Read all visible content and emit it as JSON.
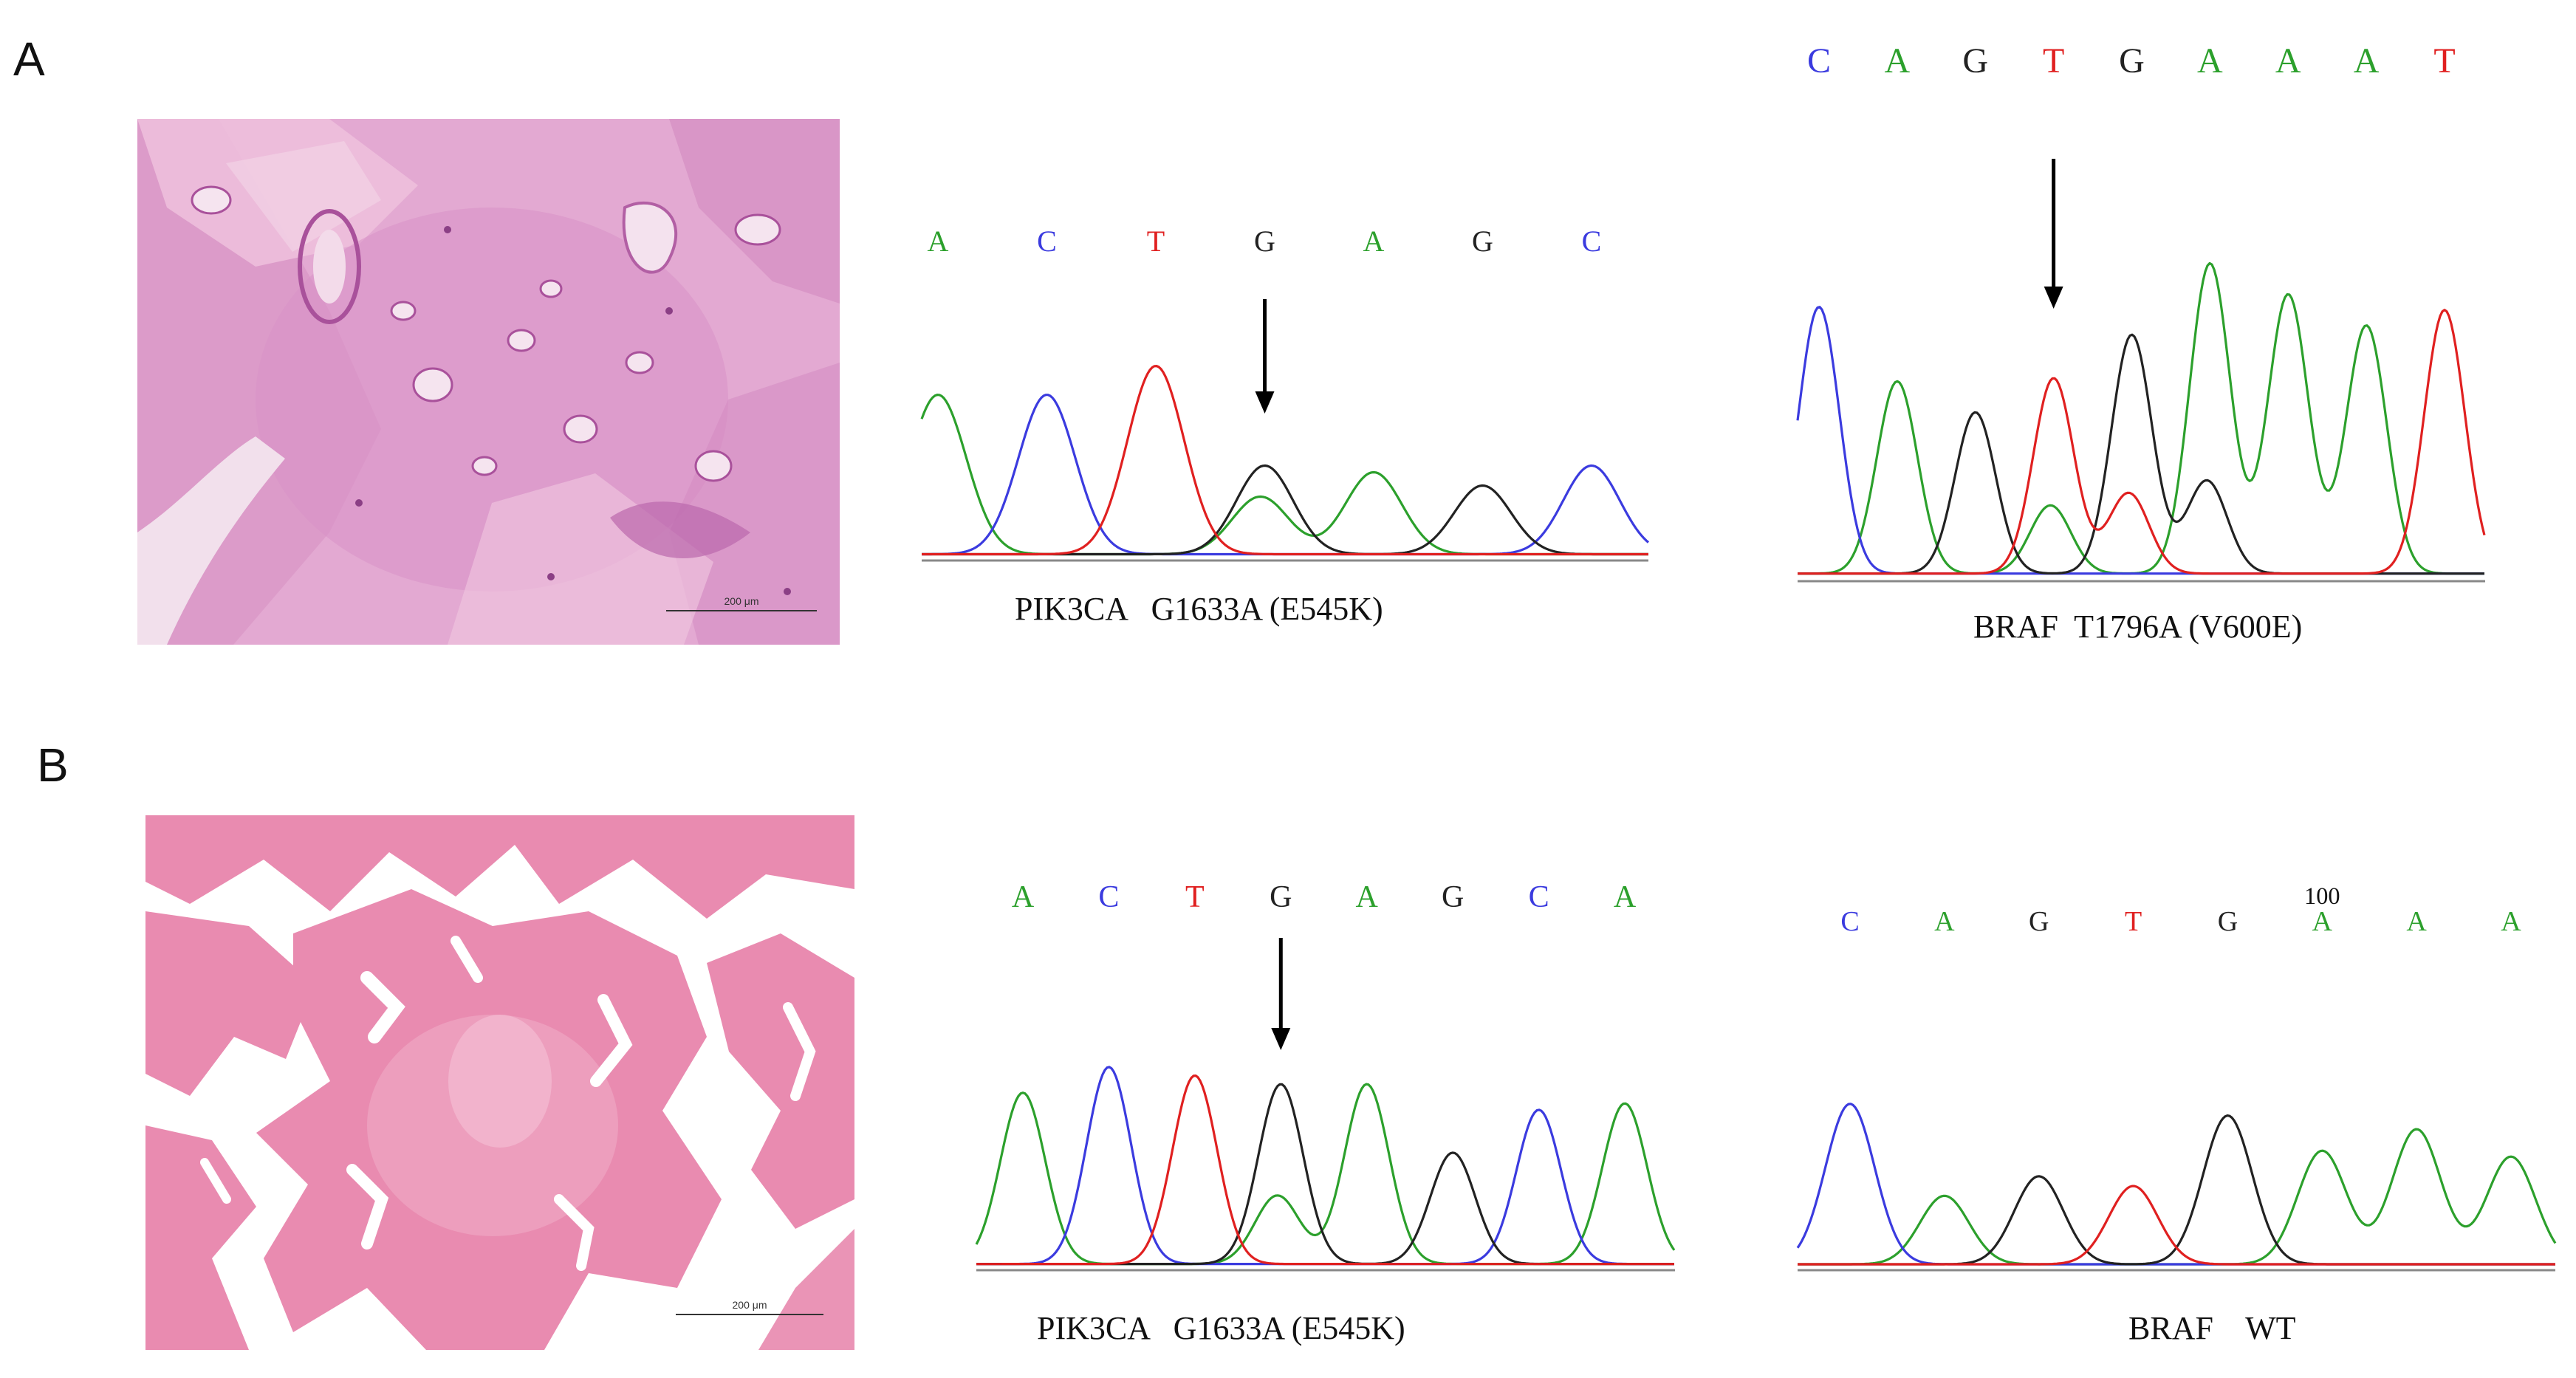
{
  "colors": {
    "A": "#2ca02c",
    "C": "#3b3bdf",
    "G": "#222222",
    "T": "#e02020",
    "tissue_a": "#e3a9d2",
    "tissue_b": "#e98bb0",
    "arrow": "#000000"
  },
  "panels": [
    {
      "letter": "A",
      "histology": {
        "scale_label": "200 μm"
      },
      "traces": [
        {
          "id": "a-pik3ca",
          "bases": [
            "A",
            "C",
            "T",
            "G",
            "A",
            "G",
            "C"
          ],
          "caption": "PIK3CA   G1633A (E545K)",
          "arrow_base_index": 3,
          "peaks": [
            {
              "base": "A",
              "height": 0.72
            },
            {
              "base": "C",
              "height": 0.72
            },
            {
              "base": "T",
              "height": 0.85
            },
            {
              "base": "G",
              "height": 0.4,
              "secondary": {
                "base": "A",
                "height": 0.26
              }
            },
            {
              "base": "A",
              "height": 0.37
            },
            {
              "base": "G",
              "height": 0.31
            },
            {
              "base": "C",
              "height": 0.4
            }
          ]
        },
        {
          "id": "a-braf",
          "bases": [
            "C",
            "A",
            "G",
            "T",
            "G",
            "A",
            "A",
            "A",
            "T"
          ],
          "caption": "BRAF  T1796A (V600E)",
          "arrow_base_index": 3,
          "peaks": [
            {
              "base": "C",
              "height": 0.86
            },
            {
              "base": "A",
              "height": 0.62
            },
            {
              "base": "G",
              "height": 0.52
            },
            {
              "base": "T",
              "height": 0.63,
              "secondary": {
                "base": "A",
                "height": 0.22
              }
            },
            {
              "base": "G",
              "height": 0.77,
              "secondary": {
                "base": "T",
                "height": 0.26
              }
            },
            {
              "base": "A",
              "height": 1.0,
              "secondary": {
                "base": "G",
                "height": 0.3
              }
            },
            {
              "base": "A",
              "height": 0.9
            },
            {
              "base": "A",
              "height": 0.8
            },
            {
              "base": "T",
              "height": 0.85
            }
          ]
        }
      ]
    },
    {
      "letter": "B",
      "histology": {
        "scale_label": "200 μm"
      },
      "traces": [
        {
          "id": "b-pik3ca",
          "bases": [
            "A",
            "C",
            "T",
            "G",
            "A",
            "G",
            "C",
            "A"
          ],
          "caption": "PIK3CA   G1633A (E545K)",
          "arrow_base_index": 3,
          "peaks": [
            {
              "base": "A",
              "height": 0.8
            },
            {
              "base": "C",
              "height": 0.92
            },
            {
              "base": "T",
              "height": 0.88
            },
            {
              "base": "G",
              "height": 0.84,
              "secondary": {
                "base": "A",
                "height": 0.32
              }
            },
            {
              "base": "A",
              "height": 0.84
            },
            {
              "base": "G",
              "height": 0.52
            },
            {
              "base": "C",
              "height": 0.72
            },
            {
              "base": "A",
              "height": 0.75
            }
          ]
        },
        {
          "id": "b-braf",
          "bases": [
            "C",
            "A",
            "G",
            "T",
            "G",
            "A",
            "A",
            "A"
          ],
          "caption": "BRAF    WT",
          "position_label": "100",
          "position_label_index": 5,
          "arrow_base_index": null,
          "peaks": [
            {
              "base": "C",
              "height": 0.82
            },
            {
              "base": "A",
              "height": 0.35
            },
            {
              "base": "G",
              "height": 0.45
            },
            {
              "base": "T",
              "height": 0.4
            },
            {
              "base": "G",
              "height": 0.76
            },
            {
              "base": "A",
              "height": 0.58
            },
            {
              "base": "A",
              "height": 0.69
            },
            {
              "base": "A",
              "height": 0.55
            }
          ]
        }
      ]
    }
  ]
}
